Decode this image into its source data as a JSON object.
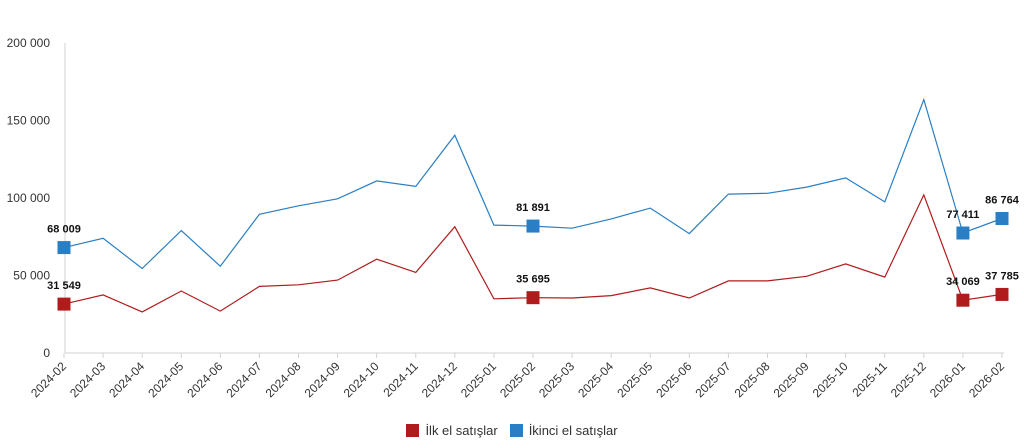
{
  "chart_data": {
    "type": "line",
    "title": "",
    "xlabel": "",
    "ylabel": "",
    "ylim": [
      0,
      200000
    ],
    "yticks": [
      0,
      50000,
      100000,
      150000,
      200000
    ],
    "ytick_labels": [
      "0",
      "50 000",
      "100 000",
      "150 000",
      "200 000"
    ],
    "grid": false,
    "legend_position": "bottom",
    "categories": [
      "2024-02",
      "2024-03",
      "2024-04",
      "2024-05",
      "2024-06",
      "2024-07",
      "2024-08",
      "2024-09",
      "2024-10",
      "2024-11",
      "2024-12",
      "2025-01",
      "2025-02",
      "2025-03",
      "2025-04",
      "2025-05",
      "2025-06",
      "2025-07",
      "2025-08",
      "2025-09",
      "2025-10",
      "2025-11",
      "2025-12",
      "2026-01",
      "2026-02"
    ],
    "series": [
      {
        "name": "İlk el satışlar",
        "color": "#b01c1c",
        "values": [
          31549,
          37500,
          26500,
          40000,
          27000,
          43000,
          44000,
          47000,
          60500,
          52000,
          81500,
          35000,
          35695,
          35500,
          37000,
          42000,
          35500,
          46500,
          46500,
          49500,
          57500,
          49000,
          102000,
          34069,
          37785
        ],
        "markers": [
          0,
          12,
          23,
          24
        ],
        "labels": [
          "31 549",
          "35 695",
          "34 069",
          "37 785"
        ]
      },
      {
        "name": "İkinci el satışlar",
        "color": "#2a7fc4",
        "values": [
          68009,
          74000,
          54500,
          79000,
          56000,
          89500,
          95000,
          99500,
          111000,
          107500,
          140500,
          82500,
          81891,
          80500,
          86500,
          93500,
          77000,
          102500,
          103000,
          107000,
          113000,
          97500,
          163500,
          77411,
          86764
        ],
        "markers": [
          0,
          12,
          23,
          24
        ],
        "labels": [
          "68 009",
          "81 891",
          "77 411",
          "86 764"
        ]
      }
    ]
  }
}
